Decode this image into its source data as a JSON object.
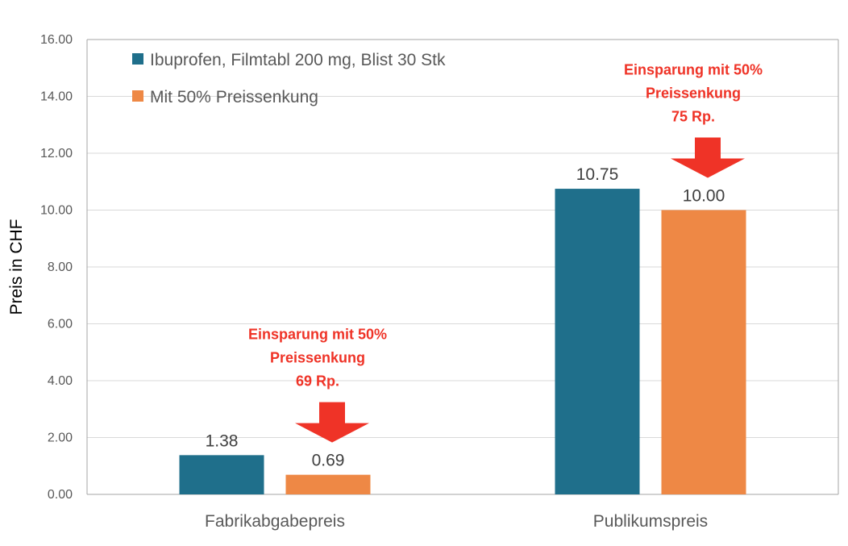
{
  "colors": {
    "series_1": "#1f6f8b",
    "series_2": "#ee8845",
    "annotation": "#ef3327",
    "grid": "#d9d9d9",
    "axis": "#a6a6a6"
  },
  "chart_data": {
    "type": "bar",
    "categories": [
      "Fabrikabgabepreis",
      "Publikumspreis"
    ],
    "series": [
      {
        "name": "Ibuprofen, Filmtabl 200 mg, Blist 30 Stk",
        "values": [
          1.38,
          10.75
        ],
        "labels": [
          "1.38",
          "10.75"
        ]
      },
      {
        "name": "Mit 50% Preissenkung",
        "values": [
          0.69,
          10.0
        ],
        "labels": [
          "0.69",
          "10.00"
        ]
      }
    ],
    "ylabel": "Preis in CHF",
    "ylim": [
      0,
      16
    ],
    "yticks": [
      "0.00",
      "2.00",
      "4.00",
      "6.00",
      "8.00",
      "10.00",
      "12.00",
      "14.00",
      "16.00"
    ],
    "grid": true,
    "legend_position": "top-left",
    "annotations": [
      {
        "category": "Fabrikabgabepreis",
        "lines": [
          "Einsparung mit 50%",
          "Preissenkung",
          "69 Rp."
        ],
        "arrow": "down"
      },
      {
        "category": "Publikumspreis",
        "lines": [
          "Einsparung mit 50%",
          "Preissenkung",
          "75 Rp."
        ],
        "arrow": "down"
      }
    ]
  }
}
